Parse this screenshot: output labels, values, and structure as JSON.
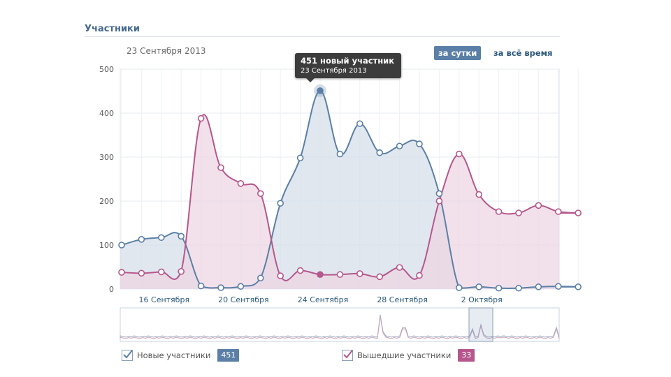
{
  "header": {
    "title": "Участники",
    "date": "23 Сентября 2013"
  },
  "period_tabs": {
    "day": "за сутки",
    "all": "за всё время"
  },
  "tooltip": {
    "title": "451 новый участник",
    "date": "23 Сентября 2013"
  },
  "legend": [
    {
      "label": "Новые участники",
      "count": "451",
      "color": "#5b7fa6"
    },
    {
      "label": "Вышедшие участники",
      "count": "33",
      "color": "#b5578c"
    }
  ],
  "colors": {
    "new_line": "#5b7fa6",
    "new_fill": "#d3dde8",
    "left_line": "#b5578c",
    "left_fill": "#ecd4e3"
  },
  "chart_data": {
    "type": "area",
    "x_start_day": 14,
    "x_tick_labels": [
      {
        "day": 16,
        "label": "16 Сентября"
      },
      {
        "day": 20,
        "label": "20 Сентября"
      },
      {
        "day": 24,
        "label": "24 Сентября"
      },
      {
        "day": 28,
        "label": "28 Сентября"
      },
      {
        "day": 32,
        "label": "2 Октября"
      }
    ],
    "yticks": [
      "0",
      "100",
      "200",
      "300",
      "400",
      "500"
    ],
    "ylim": [
      0,
      500
    ],
    "series": [
      {
        "name": "Новые участники",
        "values": [
          100,
          113,
          117,
          120,
          7,
          3,
          6,
          25,
          195,
          298,
          451,
          307,
          376,
          310,
          325,
          330,
          217,
          3,
          5,
          2,
          2,
          5,
          6,
          5
        ]
      },
      {
        "name": "Вышедшие участники",
        "values": [
          38,
          36,
          39,
          40,
          388,
          276,
          240,
          217,
          30,
          42,
          33,
          33,
          35,
          28,
          49,
          31,
          200,
          307,
          215,
          176,
          173,
          190,
          176,
          173
        ]
      }
    ],
    "highlight_index": 10
  }
}
